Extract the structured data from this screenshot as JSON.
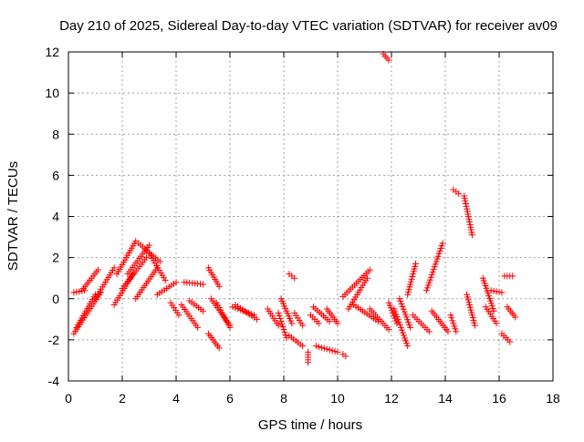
{
  "chart_data": {
    "type": "scatter",
    "title": "Day 210 of 2025, Sidereal Day-to-day VTEC variation (SDTVAR) for receiver av09",
    "xlabel": "GPS time / hours",
    "ylabel": "SDTVAR / TECUs",
    "xlim": [
      0,
      18
    ],
    "ylim": [
      -4,
      12
    ],
    "xticks": [
      0,
      2,
      4,
      6,
      8,
      10,
      12,
      14,
      16,
      18
    ],
    "yticks": [
      -4,
      -2,
      0,
      2,
      4,
      6,
      8,
      10,
      12
    ],
    "grid": true,
    "marker": "+",
    "color": "#ff0000",
    "segments": [
      {
        "x0": 0.2,
        "x1": 0.6,
        "y0": 0.3,
        "y1": 0.4
      },
      {
        "x0": 0.2,
        "x1": 1.2,
        "y0": -1.7,
        "y1": 0.3
      },
      {
        "x0": 0.3,
        "x1": 1.0,
        "y0": -1.4,
        "y1": 0.2
      },
      {
        "x0": 0.5,
        "x1": 1.1,
        "y0": 0.4,
        "y1": 1.4
      },
      {
        "x0": 1.0,
        "x1": 1.7,
        "y0": 0.0,
        "y1": 1.5
      },
      {
        "x0": 1.7,
        "x1": 2.4,
        "y0": -0.3,
        "y1": 1.2
      },
      {
        "x0": 1.8,
        "x1": 2.5,
        "y0": 1.2,
        "y1": 2.8
      },
      {
        "x0": 2.0,
        "x1": 2.9,
        "y0": 0.5,
        "y1": 2.0
      },
      {
        "x0": 2.2,
        "x1": 3.0,
        "y0": 1.2,
        "y1": 2.6
      },
      {
        "x0": 2.5,
        "x1": 3.3,
        "y0": 0.0,
        "y1": 1.5
      },
      {
        "x0": 2.6,
        "x1": 3.4,
        "y0": 2.7,
        "y1": 1.8
      },
      {
        "x0": 3.0,
        "x1": 3.6,
        "y0": 2.2,
        "y1": 0.9
      },
      {
        "x0": 3.3,
        "x1": 4.0,
        "y0": 0.2,
        "y1": 0.8
      },
      {
        "x0": 3.8,
        "x1": 4.1,
        "y0": -0.2,
        "y1": -0.8
      },
      {
        "x0": 4.3,
        "x1": 5.0,
        "y0": 0.8,
        "y1": 0.7
      },
      {
        "x0": 4.2,
        "x1": 4.8,
        "y0": -0.3,
        "y1": -1.4
      },
      {
        "x0": 4.5,
        "x1": 5.0,
        "y0": -0.1,
        "y1": -0.6
      },
      {
        "x0": 5.2,
        "x1": 5.6,
        "y0": 1.5,
        "y1": 0.6
      },
      {
        "x0": 5.2,
        "x1": 5.6,
        "y0": -1.7,
        "y1": -2.4
      },
      {
        "x0": 5.3,
        "x1": 6.0,
        "y0": 0.0,
        "y1": -1.3
      },
      {
        "x0": 5.5,
        "x1": 6.0,
        "y0": -0.2,
        "y1": -1.4
      },
      {
        "x0": 6.1,
        "x1": 6.9,
        "y0": -0.4,
        "y1": -0.8
      },
      {
        "x0": 6.2,
        "x1": 7.0,
        "y0": -0.3,
        "y1": -1.0
      },
      {
        "x0": 7.4,
        "x1": 7.8,
        "y0": -0.5,
        "y1": -1.3
      },
      {
        "x0": 7.8,
        "x1": 8.1,
        "y0": -0.7,
        "y1": -1.9
      },
      {
        "x0": 7.9,
        "x1": 8.3,
        "y0": 0.0,
        "y1": -1.2
      },
      {
        "x0": 8.2,
        "x1": 8.4,
        "y0": 1.2,
        "y1": 1.0
      },
      {
        "x0": 8.2,
        "x1": 8.7,
        "y0": -1.8,
        "y1": -2.3
      },
      {
        "x0": 8.4,
        "x1": 8.7,
        "y0": -0.7,
        "y1": -1.3
      },
      {
        "x0": 8.9,
        "x1": 8.9,
        "y0": -2.6,
        "y1": -3.1
      },
      {
        "x0": 9.0,
        "x1": 9.3,
        "y0": -0.8,
        "y1": -1.2
      },
      {
        "x0": 9.1,
        "x1": 9.7,
        "y0": -0.4,
        "y1": -1.1
      },
      {
        "x0": 9.2,
        "x1": 10.0,
        "y0": -2.3,
        "y1": -2.6
      },
      {
        "x0": 9.6,
        "x1": 10.0,
        "y0": -0.5,
        "y1": -1.2
      },
      {
        "x0": 10.2,
        "x1": 10.3,
        "y0": -2.7,
        "y1": -2.8
      },
      {
        "x0": 10.2,
        "x1": 11.2,
        "y0": 0.1,
        "y1": 1.4
      },
      {
        "x0": 10.4,
        "x1": 11.1,
        "y0": -0.5,
        "y1": 1.0
      },
      {
        "x0": 10.6,
        "x1": 11.5,
        "y0": -0.3,
        "y1": -1.1
      },
      {
        "x0": 11.2,
        "x1": 11.9,
        "y0": -0.5,
        "y1": -1.5
      },
      {
        "x0": 11.7,
        "x1": 11.9,
        "y0": 11.9,
        "y1": 11.6
      },
      {
        "x0": 11.9,
        "x1": 12.2,
        "y0": -0.2,
        "y1": -1.2
      },
      {
        "x0": 12.1,
        "x1": 12.6,
        "y0": -0.5,
        "y1": -2.3
      },
      {
        "x0": 12.3,
        "x1": 12.7,
        "y0": 0.0,
        "y1": -1.4
      },
      {
        "x0": 12.6,
        "x1": 12.9,
        "y0": 0.2,
        "y1": 1.7
      },
      {
        "x0": 12.8,
        "x1": 13.4,
        "y0": -0.8,
        "y1": -1.6
      },
      {
        "x0": 13.3,
        "x1": 13.9,
        "y0": 0.4,
        "y1": 2.7
      },
      {
        "x0": 13.5,
        "x1": 14.1,
        "y0": -0.6,
        "y1": -1.6
      },
      {
        "x0": 14.2,
        "x1": 14.4,
        "y0": -0.8,
        "y1": -1.6
      },
      {
        "x0": 14.3,
        "x1": 14.5,
        "y0": 5.3,
        "y1": 5.1
      },
      {
        "x0": 14.7,
        "x1": 15.0,
        "y0": 5.0,
        "y1": 3.1
      },
      {
        "x0": 14.8,
        "x1": 15.1,
        "y0": 0.2,
        "y1": -1.3
      },
      {
        "x0": 15.4,
        "x1": 15.8,
        "y0": 1.0,
        "y1": -0.6
      },
      {
        "x0": 15.5,
        "x1": 15.9,
        "y0": -0.4,
        "y1": -1.2
      },
      {
        "x0": 15.7,
        "x1": 16.1,
        "y0": 0.4,
        "y1": 0.3
      },
      {
        "x0": 16.1,
        "x1": 16.4,
        "y0": -1.7,
        "y1": -2.1
      },
      {
        "x0": 16.2,
        "x1": 16.5,
        "y0": 1.1,
        "y1": 1.1
      },
      {
        "x0": 16.3,
        "x1": 16.6,
        "y0": -0.4,
        "y1": -0.9
      }
    ]
  }
}
